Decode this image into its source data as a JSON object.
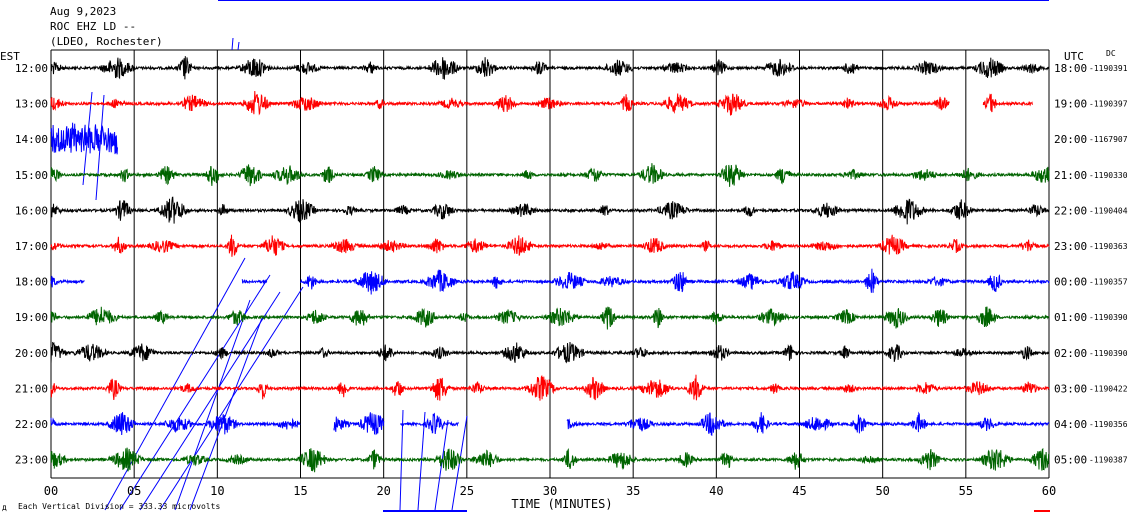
{
  "header": {
    "date": "Aug 9,2023",
    "station": "ROC EHZ LD --",
    "network": "(LDEO, Rochester)"
  },
  "left_axis_title": "EST",
  "right_axis_title": "UTC",
  "dc_label": "DC",
  "footer_note": "Each Vertical Division = 333.33 microvolts",
  "footer_mark": "д",
  "chart_data": {
    "type": "line",
    "title": "",
    "xlabel": "TIME (MINUTES)",
    "ylabel": "",
    "xlim": [
      0,
      60
    ],
    "x_ticks": [
      "00",
      "05",
      "10",
      "15",
      "20",
      "25",
      "30",
      "35",
      "40",
      "45",
      "50",
      "55",
      "60"
    ],
    "grid": "vertical lines every 5 minutes",
    "trace_colors": [
      "#000000",
      "#ff0000",
      "#0000ff",
      "#006400"
    ],
    "rows": [
      {
        "est": "12:00",
        "utc": "18:00",
        "dc": "-1190391",
        "color": "#000000",
        "data_span_min": [
          0,
          60
        ]
      },
      {
        "est": "13:00",
        "utc": "19:00",
        "dc": "-1190397",
        "color": "#ff0000",
        "data_span_min": [
          0,
          60
        ],
        "gaps_min": [
          [
            54,
            56
          ],
          [
            59,
            60
          ]
        ]
      },
      {
        "est": "14:00",
        "utc": "20:00",
        "dc": "-1167907",
        "color": "#0000ff",
        "data_span_min": [
          0,
          4
        ]
      },
      {
        "est": "15:00",
        "utc": "21:00",
        "dc": "-1190330",
        "color": "#006400",
        "data_span_min": [
          0,
          60
        ]
      },
      {
        "est": "16:00",
        "utc": "22:00",
        "dc": "-1190404",
        "color": "#000000",
        "data_span_min": [
          0,
          60
        ]
      },
      {
        "est": "17:00",
        "utc": "23:00",
        "dc": "-1190363",
        "color": "#ff0000",
        "data_span_min": [
          0,
          60
        ]
      },
      {
        "est": "18:00",
        "utc": "00:00",
        "dc": "-1190357",
        "color": "#0000ff",
        "data_span_min": [
          0,
          60
        ],
        "gaps_min": [
          [
            2,
            11.5
          ],
          [
            13,
            15
          ]
        ]
      },
      {
        "est": "19:00",
        "utc": "01:00",
        "dc": "-1190390",
        "color": "#006400",
        "data_span_min": [
          0,
          60
        ]
      },
      {
        "est": "20:00",
        "utc": "02:00",
        "dc": "-1190390",
        "color": "#000000",
        "data_span_min": [
          0,
          60
        ]
      },
      {
        "est": "21:00",
        "utc": "03:00",
        "dc": "-1190422",
        "color": "#ff0000",
        "data_span_min": [
          0,
          60
        ]
      },
      {
        "est": "22:00",
        "utc": "04:00",
        "dc": "-1190356",
        "color": "#0000ff",
        "data_span_min": [
          0,
          60
        ],
        "gaps_min": [
          [
            15,
            17
          ],
          [
            20,
            21
          ],
          [
            24.5,
            31
          ]
        ]
      },
      {
        "est": "23:00",
        "utc": "05:00",
        "dc": "-1190387",
        "color": "#006400",
        "data_span_min": [
          0,
          60
        ]
      }
    ]
  }
}
